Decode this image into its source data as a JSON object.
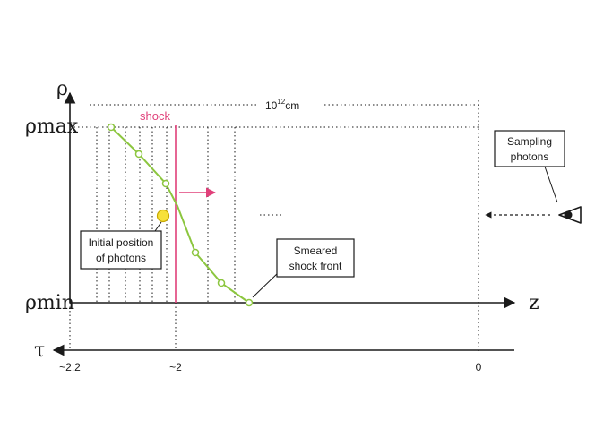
{
  "axes": {
    "rho_symbol": "ρ",
    "rho_max": "ρmax",
    "rho_min": "ρmin",
    "z_label": "z",
    "tau_symbol": "τ",
    "tau_ticks": [
      "~2.2",
      "~2",
      "0"
    ]
  },
  "scale": {
    "base": "10",
    "exponent": "12",
    "unit": "cm"
  },
  "labels": {
    "shock": "shock",
    "initial_line1": "Initial position",
    "initial_line2": "of photons",
    "smeared_line1": "Smeared",
    "smeared_line2": "shock front",
    "sampling_line1": "Sampling",
    "sampling_line2": "photons"
  },
  "colors": {
    "curve": "#8cc63f",
    "shock": "#e0407a",
    "photon": "#f7e13a",
    "axis": "#1a1a1a"
  },
  "icons": {
    "observer": "eye-icon"
  }
}
